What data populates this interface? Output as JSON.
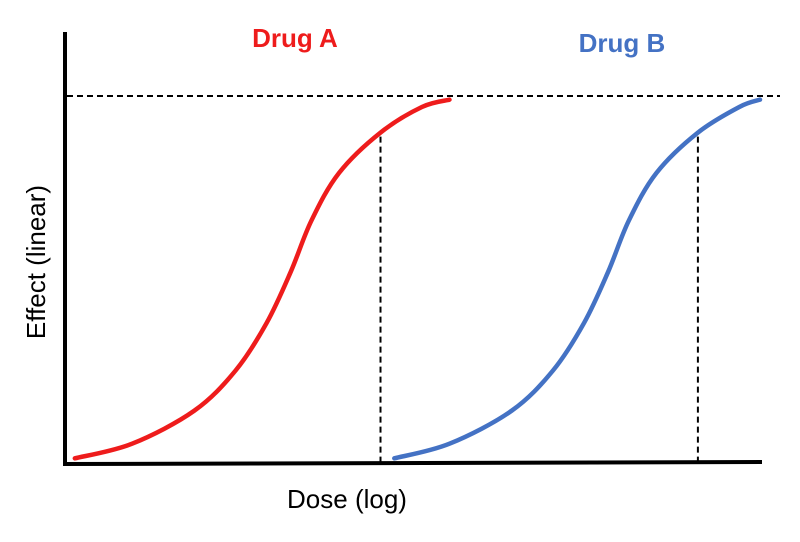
{
  "chart_data": {
    "type": "line",
    "title": "",
    "xlabel": "Dose (log)",
    "ylabel": "Effect (linear)",
    "xlim": [
      0,
      10
    ],
    "ylim": [
      0,
      100
    ],
    "x_ticks": [],
    "y_ticks": [],
    "grid": false,
    "legend": "none",
    "max_effect": 100,
    "series": [
      {
        "name": "Drug A",
        "color": "#ee1c1c",
        "x": [
          0.07,
          0.9,
          1.8,
          2.4,
          2.85,
          3.2,
          3.5,
          3.9,
          4.5,
          5.1,
          5.5
        ],
        "y": [
          1,
          5,
          14,
          25,
          38,
          52,
          66,
          79,
          90,
          97,
          99
        ],
        "reference_x": 4.5
      },
      {
        "name": "Drug B",
        "color": "#4472c4",
        "x": [
          4.7,
          5.5,
          6.4,
          7.0,
          7.45,
          7.8,
          8.1,
          8.5,
          9.1,
          9.7,
          10.0
        ],
        "y": [
          1,
          5,
          14,
          25,
          38,
          52,
          66,
          79,
          90,
          97,
          99
        ],
        "reference_x": 9.1
      }
    ]
  }
}
